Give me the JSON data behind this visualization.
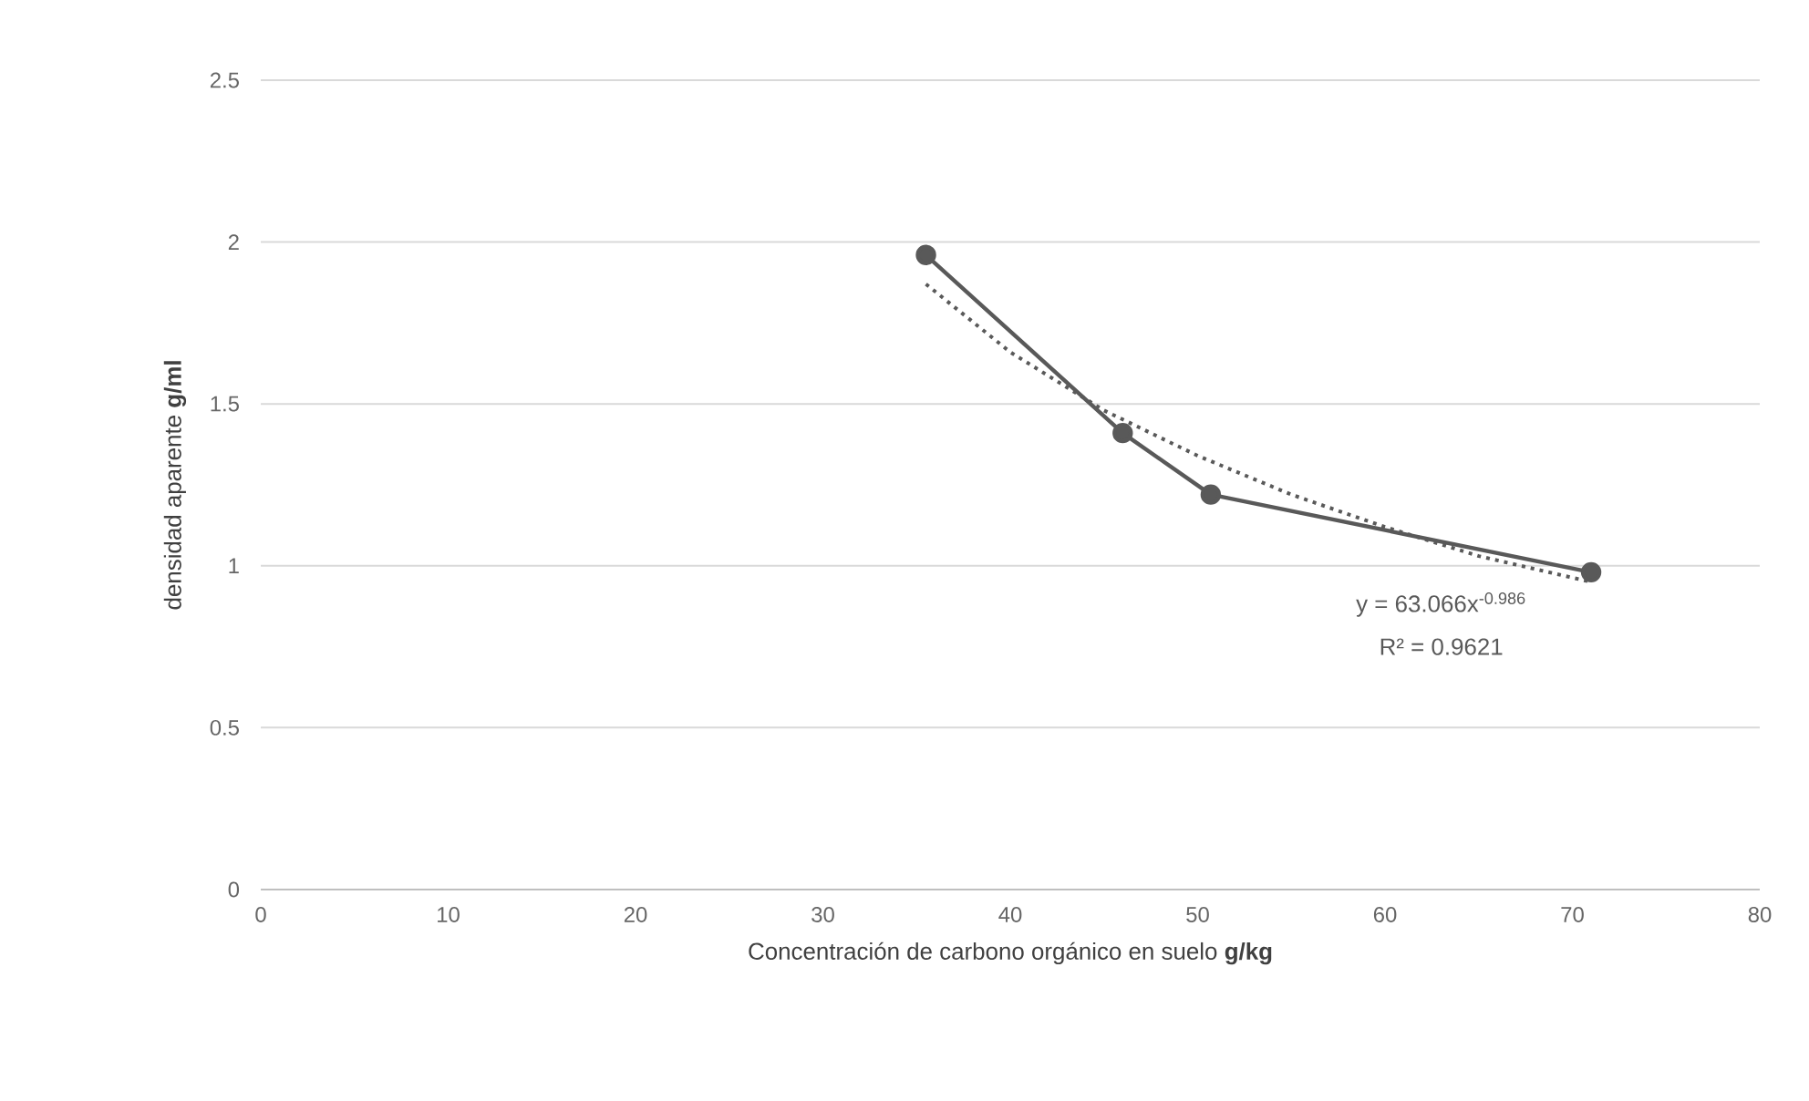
{
  "chart_data": {
    "type": "line",
    "xlabel": "Concentración de carbono orgánico en suelo **g/kg**",
    "ylabel": "densidad aparente **g/ml**",
    "xlim": [
      0,
      80
    ],
    "xticks": [
      0,
      10,
      20,
      30,
      40,
      50,
      60,
      70,
      80
    ],
    "ylim": [
      0,
      2.5
    ],
    "yticks": [
      0,
      0.5,
      1,
      1.5,
      2,
      2.5
    ],
    "grid": "y",
    "marker": "circle",
    "series": [
      {
        "color": "#595959",
        "x": [
          35.5,
          46,
          50.7,
          71
        ],
        "values": [
          1.96,
          1.41,
          1.22,
          0.98
        ]
      },
      {
        "type": "line",
        "color": "#595959",
        "line_style": "dotted",
        "marker": "none",
        "x": [
          35.5,
          40,
          45,
          50,
          55,
          60,
          65,
          71
        ],
        "values": [
          1.87,
          1.66,
          1.48,
          1.34,
          1.22,
          1.12,
          1.03,
          0.95
        ]
      }
    ],
    "annotations": [
      "y = 63.066x$^{-0.986}$",
      "R² = 0.9621"
    ]
  }
}
